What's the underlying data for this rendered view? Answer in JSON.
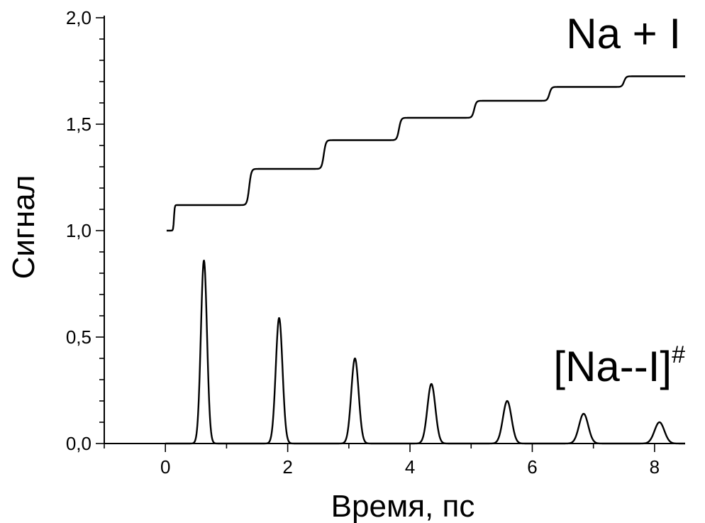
{
  "chart_data": {
    "type": "line",
    "xlabel": "Время, пс",
    "ylabel": "Сигнал",
    "xlim": [
      -1.0,
      8.5
    ],
    "ylim": [
      0.0,
      2.0
    ],
    "x_ticks": [
      0,
      2,
      4,
      6,
      8
    ],
    "y_ticks": [
      0.0,
      0.5,
      1.0,
      1.5,
      2.0
    ],
    "x_tick_labels": [
      "0",
      "2",
      "4",
      "6",
      "8"
    ],
    "y_tick_labels": [
      "0,0",
      "0,5",
      "1,0",
      "1,5",
      "2,0"
    ],
    "grid": false,
    "annotations": [
      {
        "text": "Na + I",
        "x": 6.5,
        "y": 1.85
      },
      {
        "text": "[Na--I]",
        "superscript": "#",
        "x": 6.5,
        "y": 0.37
      }
    ],
    "series": [
      {
        "x_start": 0.02,
        "x_end": 8.5,
        "y_initial": 1.0,
        "steps": [
          {
            "x": 0.14,
            "y": 1.0,
            "to": 1.12
          },
          {
            "x": 1.37,
            "y": 1.12,
            "to": 1.29
          },
          {
            "x": 2.59,
            "y": 1.29,
            "to": 1.425
          },
          {
            "x": 3.82,
            "y": 1.425,
            "to": 1.53
          },
          {
            "x": 5.05,
            "y": 1.53,
            "to": 1.61
          },
          {
            "x": 6.28,
            "y": 1.61,
            "to": 1.675
          },
          {
            "x": 7.5,
            "y": 1.675,
            "to": 1.725
          }
        ]
      },
      {
        "x_start": 0.0,
        "x_end": 8.5,
        "peaks": [
          {
            "x": 0.63,
            "y": 0.86,
            "width": 0.05
          },
          {
            "x": 1.86,
            "y": 0.59,
            "width": 0.055
          },
          {
            "x": 3.1,
            "y": 0.4,
            "width": 0.06
          },
          {
            "x": 4.35,
            "y": 0.28,
            "width": 0.065
          },
          {
            "x": 5.59,
            "y": 0.2,
            "width": 0.07
          },
          {
            "x": 6.84,
            "y": 0.14,
            "width": 0.075
          },
          {
            "x": 8.08,
            "y": 0.1,
            "width": 0.08
          }
        ]
      }
    ]
  }
}
